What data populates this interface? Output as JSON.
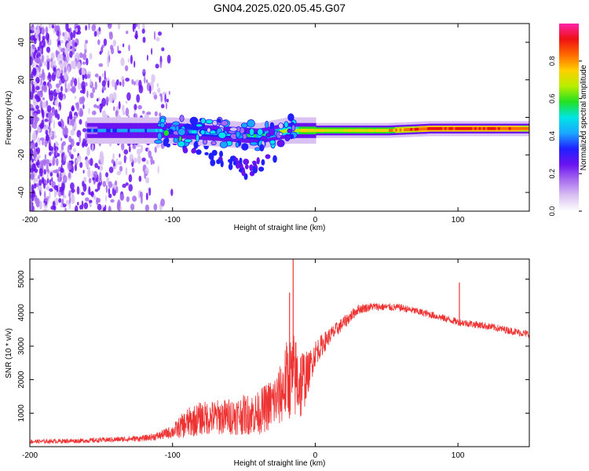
{
  "page": {
    "title": "GN04.2025.020.05.45.G07"
  },
  "colors": {
    "background": "#ffffff",
    "trace": "#ee3333",
    "colormap": [
      "#ffffff",
      "#d9c2f2",
      "#a76cf0",
      "#6a12f0",
      "#2020ff",
      "#1aa8ff",
      "#00e5e5",
      "#22e022",
      "#b8ee00",
      "#ffd000",
      "#ff6a00",
      "#ee1111",
      "#ff22aa"
    ]
  },
  "chart_data": [
    {
      "type": "heatmap",
      "title": "GN04.2025.020.05.45.G07",
      "xlabel": "Height of straight line (km)",
      "ylabel": "Frequency (Hz)",
      "xlim": [
        -200,
        150
      ],
      "ylim": [
        -50,
        50
      ],
      "xticks": [
        -200,
        -100,
        0,
        100
      ],
      "yticks": [
        -40,
        -20,
        0,
        20,
        40
      ],
      "colorbar": {
        "label": "Normalized spectral amplitude",
        "range": [
          0,
          1
        ],
        "ticks": [
          "0.0",
          "0.2",
          "0.4",
          "0.6",
          "0.8"
        ]
      },
      "ridge": {
        "description_points": [
          {
            "x": -160,
            "freq": -7,
            "amp": 0.35
          },
          {
            "x": -120,
            "freq": -7,
            "amp": 0.4
          },
          {
            "x": -100,
            "freq": -7,
            "amp": 0.45
          },
          {
            "x": -80,
            "freq": -8,
            "amp": 0.45
          },
          {
            "x": -60,
            "freq": -9,
            "amp": 0.5
          },
          {
            "x": -40,
            "freq": -10,
            "amp": 0.5
          },
          {
            "x": -20,
            "freq": -7,
            "amp": 0.65
          },
          {
            "x": 0,
            "freq": -7,
            "amp": 0.75
          },
          {
            "x": 20,
            "freq": -7,
            "amp": 0.7
          },
          {
            "x": 50,
            "freq": -7,
            "amp": 0.75
          },
          {
            "x": 80,
            "freq": -6,
            "amp": 0.9
          },
          {
            "x": 100,
            "freq": -6,
            "amp": 0.9
          },
          {
            "x": 150,
            "freq": -6,
            "amp": 0.85
          }
        ],
        "noise_region_x": [
          -200,
          -110
        ],
        "low_branch": [
          {
            "x": -110,
            "freq": -10
          },
          {
            "x": -80,
            "freq": -18
          },
          {
            "x": -50,
            "freq": -28
          },
          {
            "x": -30,
            "freq": -22
          }
        ]
      }
    },
    {
      "type": "line",
      "xlabel": "Height of straight line (km)",
      "ylabel": "SNR (10 * v/v)",
      "xlim": [
        -200,
        150
      ],
      "ylim": [
        0,
        5600
      ],
      "xticks": [
        -200,
        -100,
        0,
        100
      ],
      "yticks": [
        1000,
        2000,
        3000,
        4000,
        5000
      ],
      "series": [
        {
          "envelope": {
            "x": [
              -200,
              -160,
              -120,
              -110,
              -100,
              -90,
              -80,
              -60,
              -40,
              -30,
              -25,
              -20,
              -15,
              -10,
              -5,
              0,
              10,
              20,
              30,
              40,
              60,
              80,
              100,
              120,
              150
            ],
            "y": [
              150,
              180,
              250,
              320,
              450,
              700,
              850,
              900,
              1000,
              1300,
              1500,
              2000,
              2100,
              1900,
              2200,
              2800,
              3300,
              3700,
              4100,
              4180,
              4150,
              3950,
              3720,
              3600,
              3350
            ],
            "spread": [
              60,
              70,
              90,
              120,
              200,
              450,
              500,
              550,
              650,
              800,
              900,
              1200,
              1300,
              1200,
              600,
              400,
              250,
              200,
              150,
              120,
              110,
              110,
              110,
              110,
              110
            ]
          },
          "spikes": [
            {
              "x": -15.5,
              "y": 5700
            },
            {
              "x": -18,
              "y": 4600
            },
            {
              "x": 101,
              "y": 4900
            }
          ]
        }
      ]
    }
  ]
}
